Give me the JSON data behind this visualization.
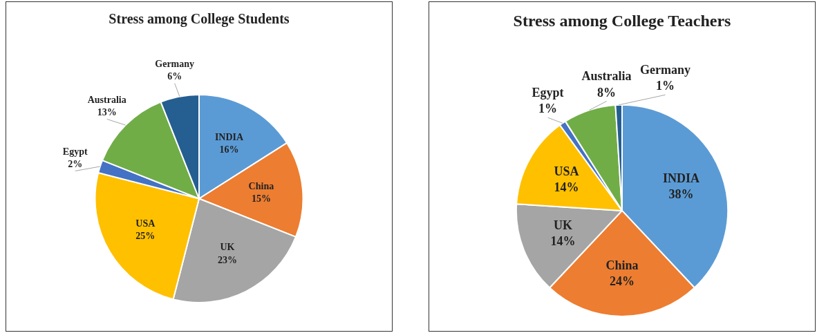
{
  "chart_data": [
    {
      "type": "pie",
      "title": "Stress among College Students",
      "categories": [
        "INDIA",
        "China",
        "UK",
        "USA",
        "Egypt",
        "Australia",
        "Germany"
      ],
      "values": [
        16,
        15,
        23,
        25,
        2,
        13,
        6
      ],
      "value_labels": [
        "16%",
        "15%",
        "23%",
        "25%",
        "2%",
        "13%",
        "6%"
      ],
      "colors": [
        "#5b9bd5",
        "#ed7d31",
        "#a5a5a5",
        "#ffc000",
        "#4472c4",
        "#70ad47",
        "#255e91"
      ]
    },
    {
      "type": "pie",
      "title": "Stress among College Teachers",
      "categories": [
        "INDIA",
        "China",
        "UK",
        "USA",
        "Egypt",
        "Australia",
        "Germany"
      ],
      "values": [
        38,
        24,
        14,
        14,
        1,
        8,
        1
      ],
      "value_labels": [
        "38%",
        "24%",
        "14%",
        "14%",
        "1%",
        "8%",
        "1%"
      ],
      "colors": [
        "#5b9bd5",
        "#ed7d31",
        "#a5a5a5",
        "#ffc000",
        "#4472c4",
        "#70ad47",
        "#255e91"
      ]
    }
  ]
}
